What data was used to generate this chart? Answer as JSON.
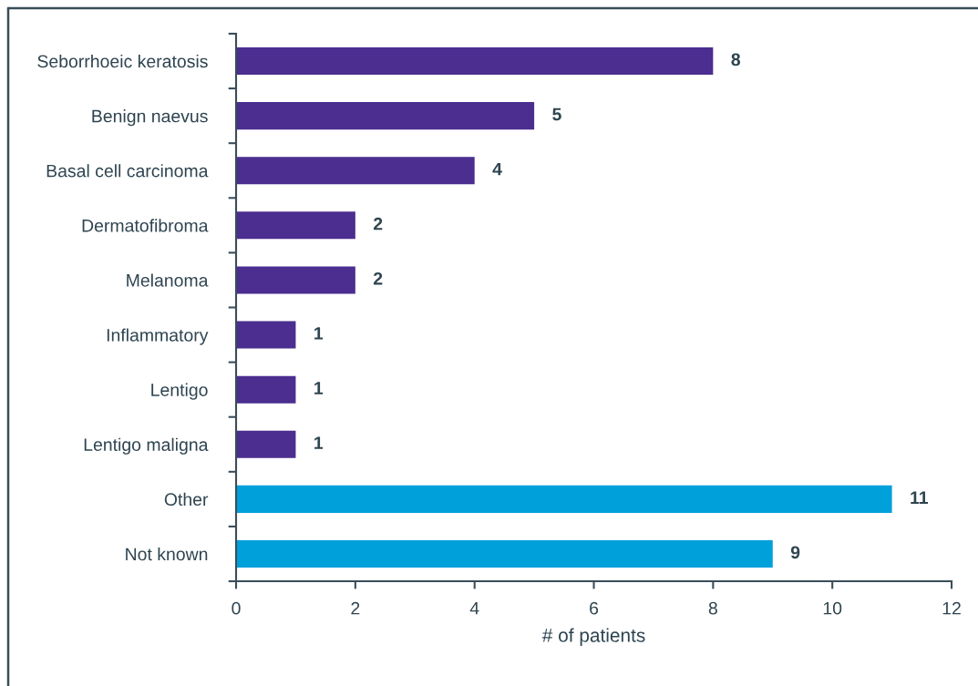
{
  "chart_data": {
    "type": "bar",
    "orientation": "horizontal",
    "categories": [
      "Seborrhoeic keratosis",
      "Benign naevus",
      "Basal cell carcinoma",
      "Dermatofibroma",
      "Melanoma",
      "Inflammatory",
      "Lentigo",
      "Lentigo maligna",
      "Other",
      "Not known"
    ],
    "values": [
      8,
      5,
      4,
      2,
      2,
      1,
      1,
      1,
      11,
      9
    ],
    "colors": [
      "#4b2e8f",
      "#4b2e8f",
      "#4b2e8f",
      "#4b2e8f",
      "#4b2e8f",
      "#4b2e8f",
      "#4b2e8f",
      "#4b2e8f",
      "#00a0da",
      "#00a0da"
    ],
    "xlim": [
      0,
      12
    ],
    "xticks": [
      0,
      2,
      4,
      6,
      8,
      10,
      12
    ],
    "xlabel": "# of patients",
    "data_labels": true,
    "grid": false
  }
}
